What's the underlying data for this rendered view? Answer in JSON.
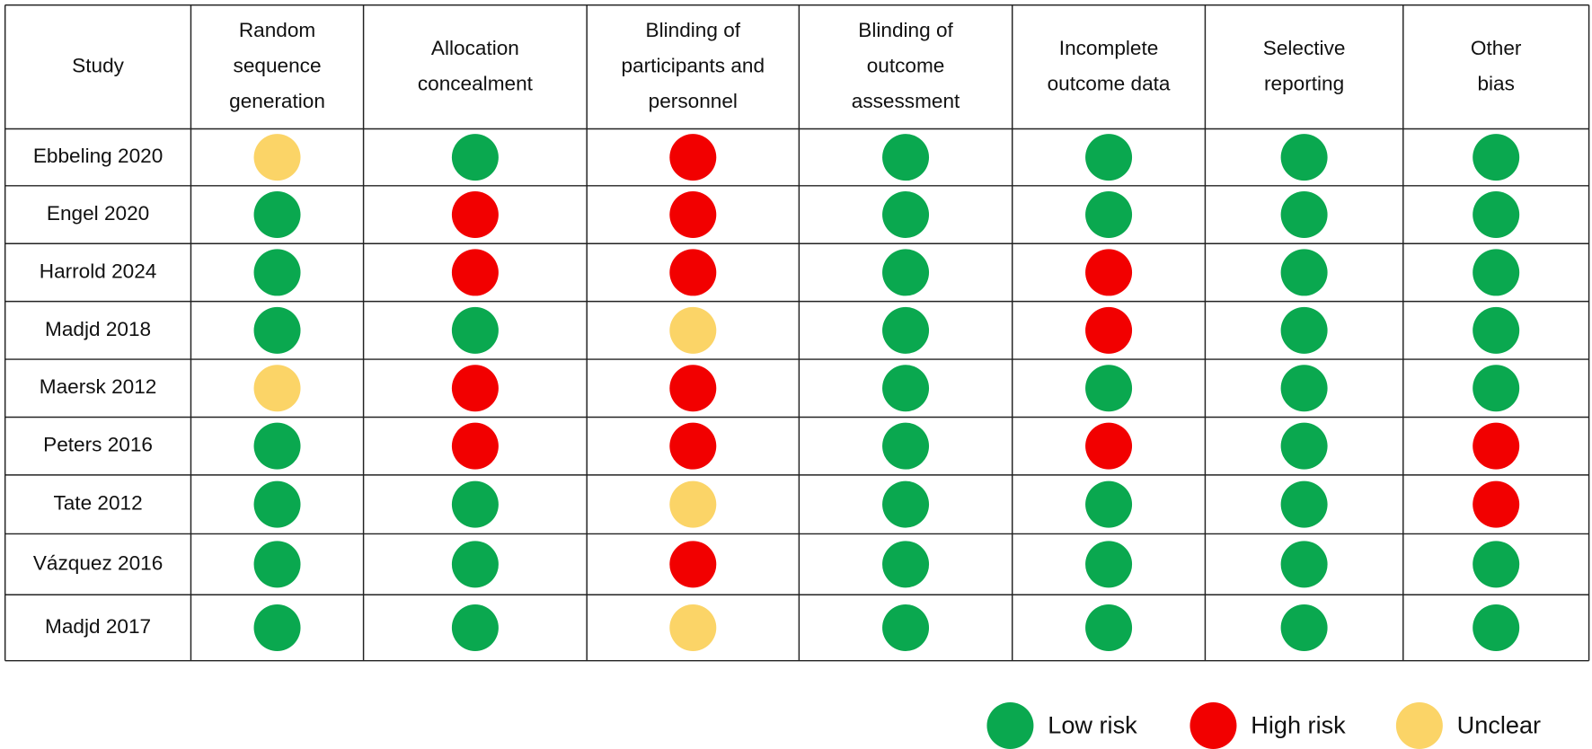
{
  "table": {
    "columns": [
      [
        "Study"
      ],
      [
        "Random",
        "sequence",
        "generation"
      ],
      [
        "Allocation",
        "concealment"
      ],
      [
        "Blinding of",
        "participants and",
        "personnel"
      ],
      [
        "Blinding of",
        "outcome",
        "assessment"
      ],
      [
        "Incomplete",
        "outcome data"
      ],
      [
        "Selective",
        "reporting"
      ],
      [
        "Other",
        "bias"
      ]
    ],
    "rows": [
      {
        "study": "Ebbeling 2020",
        "ratings": [
          "Unclear",
          "Low risk",
          "High risk",
          "Low risk",
          "Low risk",
          "Low risk",
          "Low risk"
        ]
      },
      {
        "study": "Engel 2020",
        "ratings": [
          "Low risk",
          "High risk",
          "High risk",
          "Low risk",
          "Low risk",
          "Low risk",
          "Low risk"
        ]
      },
      {
        "study": "Harrold 2024",
        "ratings": [
          "Low risk",
          "High risk",
          "High risk",
          "Low risk",
          "High risk",
          "Low risk",
          "Low risk"
        ]
      },
      {
        "study": "Madjd 2018",
        "ratings": [
          "Low risk",
          "Low risk",
          "Unclear",
          "Low risk",
          "High risk",
          "Low risk",
          "Low risk"
        ]
      },
      {
        "study": "Maersk 2012",
        "ratings": [
          "Unclear",
          "High risk",
          "High risk",
          "Low risk",
          "Low risk",
          "Low risk",
          "Low risk"
        ]
      },
      {
        "study": "Peters 2016",
        "ratings": [
          "Low risk",
          "High risk",
          "High risk",
          "Low risk",
          "High risk",
          "Low risk",
          "High risk"
        ]
      },
      {
        "study": "Tate 2012",
        "ratings": [
          "Low risk",
          "Low risk",
          "Unclear",
          "Low risk",
          "Low risk",
          "Low risk",
          "High risk"
        ]
      },
      {
        "study": "Vázquez 2016",
        "ratings": [
          "Low risk",
          "Low risk",
          "High risk",
          "Low risk",
          "Low risk",
          "Low risk",
          "Low risk"
        ]
      },
      {
        "study": "Madjd 2017",
        "ratings": [
          "Low risk",
          "Low risk",
          "Unclear",
          "Low risk",
          "Low risk",
          "Low risk",
          "Low risk"
        ]
      }
    ]
  },
  "legend": [
    {
      "label": "Low risk",
      "color": "#0aa84f"
    },
    {
      "label": "High risk",
      "color": "#f20000"
    },
    {
      "label": "Unclear",
      "color": "#fbd467"
    }
  ]
}
